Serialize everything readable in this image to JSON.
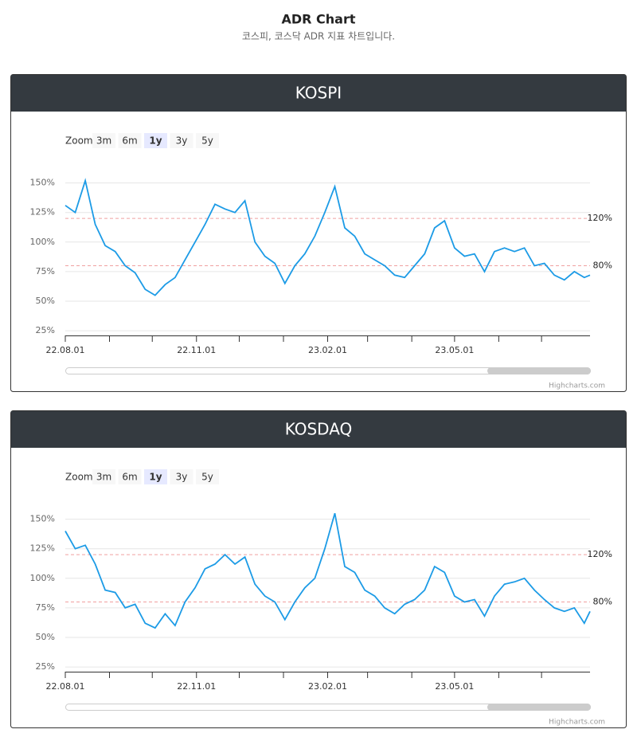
{
  "header": {
    "title": "ADR Chart",
    "subtitle": "코스피, 코스닥 ADR 지표 차트입니다."
  },
  "chart_data": [
    {
      "type": "line",
      "title": "KOSPI",
      "zoom_label": "Zoom",
      "zoom_buttons": [
        "3m",
        "6m",
        "1y",
        "3y",
        "5y"
      ],
      "zoom_selected": 2,
      "credits": "Highcharts.com",
      "xlim": [
        "22.08.01",
        "23.08.04"
      ],
      "xticks": [
        "22.08.01",
        "22.11.01",
        "23.02.01",
        "23.05.01"
      ],
      "x_minor_ticks": [
        "22.09.01",
        "22.10.01",
        "22.12.01",
        "23.01.01",
        "23.03.01",
        "23.04.01",
        "23.06.01",
        "23.07.01"
      ],
      "ylim": [
        21,
        172
      ],
      "yticks": [
        {
          "value": 25,
          "label": "25%"
        },
        {
          "value": 50,
          "label": "50%"
        },
        {
          "value": 75,
          "label": "75%"
        },
        {
          "value": 100,
          "label": "100%"
        },
        {
          "value": 125,
          "label": "125%"
        },
        {
          "value": 150,
          "label": "150%"
        }
      ],
      "grid": true,
      "plot_lines": [
        {
          "value": 120,
          "label": "120%"
        },
        {
          "value": 80,
          "label": "80%"
        }
      ],
      "plot_line_color": "#f0a0a0",
      "x": [
        "22.08.01",
        "22.08.08",
        "22.08.15",
        "22.08.22",
        "22.08.29",
        "22.09.05",
        "22.09.12",
        "22.09.19",
        "22.09.26",
        "22.10.03",
        "22.10.10",
        "22.10.17",
        "22.10.24",
        "22.10.31",
        "22.11.07",
        "22.11.14",
        "22.11.21",
        "22.11.28",
        "22.12.05",
        "22.12.12",
        "22.12.19",
        "22.12.26",
        "23.01.02",
        "23.01.09",
        "23.01.16",
        "23.01.23",
        "23.01.30",
        "23.02.06",
        "23.02.13",
        "23.02.20",
        "23.02.27",
        "23.03.06",
        "23.03.13",
        "23.03.20",
        "23.03.27",
        "23.04.03",
        "23.04.10",
        "23.04.17",
        "23.04.24",
        "23.05.01",
        "23.05.08",
        "23.05.15",
        "23.05.22",
        "23.05.29",
        "23.06.05",
        "23.06.12",
        "23.06.19",
        "23.06.26",
        "23.07.03",
        "23.07.10",
        "23.07.17",
        "23.07.24",
        "23.07.31",
        "23.08.04"
      ],
      "series": [
        {
          "color": "#1c9be6",
          "values": [
            131,
            125,
            152,
            115,
            97,
            92,
            80,
            74,
            60,
            55,
            64,
            70,
            85,
            100,
            115,
            132,
            128,
            125,
            135,
            100,
            88,
            82,
            65,
            80,
            90,
            105,
            125,
            147,
            112,
            105,
            90,
            85,
            80,
            72,
            70,
            80,
            90,
            112,
            118,
            95,
            88,
            90,
            75,
            92,
            95,
            92,
            95,
            80,
            82,
            72,
            68,
            75,
            70,
            72
          ]
        }
      ]
    },
    {
      "type": "line",
      "title": "KOSDAQ",
      "zoom_label": "Zoom",
      "zoom_buttons": [
        "3m",
        "6m",
        "1y",
        "3y",
        "5y"
      ],
      "zoom_selected": 2,
      "credits": "Highcharts.com",
      "xlim": [
        "22.08.01",
        "23.08.04"
      ],
      "xticks": [
        "22.08.01",
        "22.11.01",
        "23.02.01",
        "23.05.01"
      ],
      "x_minor_ticks": [
        "22.09.01",
        "22.10.01",
        "22.12.01",
        "23.01.01",
        "23.03.01",
        "23.04.01",
        "23.06.01",
        "23.07.01"
      ],
      "ylim": [
        21,
        172
      ],
      "yticks": [
        {
          "value": 25,
          "label": "25%"
        },
        {
          "value": 50,
          "label": "50%"
        },
        {
          "value": 75,
          "label": "75%"
        },
        {
          "value": 100,
          "label": "100%"
        },
        {
          "value": 125,
          "label": "125%"
        },
        {
          "value": 150,
          "label": "150%"
        }
      ],
      "grid": true,
      "plot_lines": [
        {
          "value": 120,
          "label": "120%"
        },
        {
          "value": 80,
          "label": "80%"
        }
      ],
      "plot_line_color": "#f0a0a0",
      "x": [
        "22.08.01",
        "22.08.08",
        "22.08.15",
        "22.08.22",
        "22.08.29",
        "22.09.05",
        "22.09.12",
        "22.09.19",
        "22.09.26",
        "22.10.03",
        "22.10.10",
        "22.10.17",
        "22.10.24",
        "22.10.31",
        "22.11.07",
        "22.11.14",
        "22.11.21",
        "22.11.28",
        "22.12.05",
        "22.12.12",
        "22.12.19",
        "22.12.26",
        "23.01.02",
        "23.01.09",
        "23.01.16",
        "23.01.23",
        "23.01.30",
        "23.02.06",
        "23.02.13",
        "23.02.20",
        "23.02.27",
        "23.03.06",
        "23.03.13",
        "23.03.20",
        "23.03.27",
        "23.04.03",
        "23.04.10",
        "23.04.17",
        "23.04.24",
        "23.05.01",
        "23.05.08",
        "23.05.15",
        "23.05.22",
        "23.05.29",
        "23.06.05",
        "23.06.12",
        "23.06.19",
        "23.06.26",
        "23.07.03",
        "23.07.10",
        "23.07.17",
        "23.07.24",
        "23.07.31",
        "23.08.04"
      ],
      "series": [
        {
          "color": "#1c9be6",
          "values": [
            140,
            125,
            128,
            112,
            90,
            88,
            75,
            78,
            62,
            58,
            70,
            60,
            80,
            92,
            108,
            112,
            120,
            112,
            118,
            95,
            85,
            80,
            65,
            80,
            92,
            100,
            125,
            155,
            110,
            105,
            90,
            85,
            75,
            70,
            78,
            82,
            90,
            110,
            105,
            85,
            80,
            82,
            68,
            85,
            95,
            97,
            100,
            90,
            82,
            75,
            72,
            75,
            62,
            72
          ]
        }
      ]
    }
  ]
}
